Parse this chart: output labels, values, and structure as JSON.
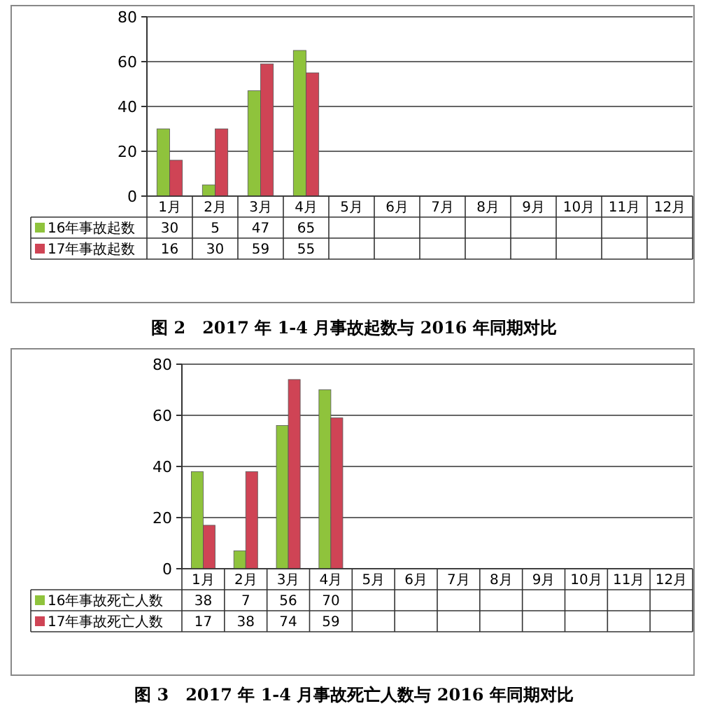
{
  "chart_data": [
    {
      "type": "bar",
      "title": "图 2　2017 年 1-4 月事故起数与 2016 年同期对比",
      "categories": [
        "1月",
        "2月",
        "3月",
        "4月",
        "5月",
        "6月",
        "7月",
        "8月",
        "9月",
        "10月",
        "11月",
        "12月"
      ],
      "series": [
        {
          "name": "16年事故起数",
          "color": "#8fc33c",
          "values": [
            30,
            5,
            47,
            65,
            null,
            null,
            null,
            null,
            null,
            null,
            null,
            null
          ]
        },
        {
          "name": "17年事故起数",
          "color": "#cf4455",
          "values": [
            16,
            30,
            59,
            55,
            null,
            null,
            null,
            null,
            null,
            null,
            null,
            null
          ]
        }
      ],
      "ylim": [
        0,
        80
      ],
      "yticks": [
        0,
        20,
        40,
        60,
        80
      ],
      "grid": "y",
      "data_labels": true,
      "legend": "bottom left"
    },
    {
      "type": "bar",
      "title": "图 3　2017 年 1-4 月事故死亡人数与 2016 年同期对比",
      "categories": [
        "1月",
        "2月",
        "3月",
        "4月",
        "5月",
        "6月",
        "7月",
        "8月",
        "9月",
        "10月",
        "11月",
        "12月"
      ],
      "series": [
        {
          "name": "16年事故死亡人数",
          "color": "#8fc33c",
          "values": [
            38,
            7,
            56,
            70,
            null,
            null,
            null,
            null,
            null,
            null,
            null,
            null
          ]
        },
        {
          "name": "17年事故死亡人数",
          "color": "#cf4455",
          "values": [
            17,
            38,
            74,
            59,
            null,
            null,
            null,
            null,
            null,
            null,
            null,
            null
          ]
        }
      ],
      "ylim": [
        0,
        80
      ],
      "yticks": [
        0,
        20,
        40,
        60,
        80
      ],
      "grid": "y",
      "data_labels": true,
      "legend": "bottom left"
    }
  ]
}
